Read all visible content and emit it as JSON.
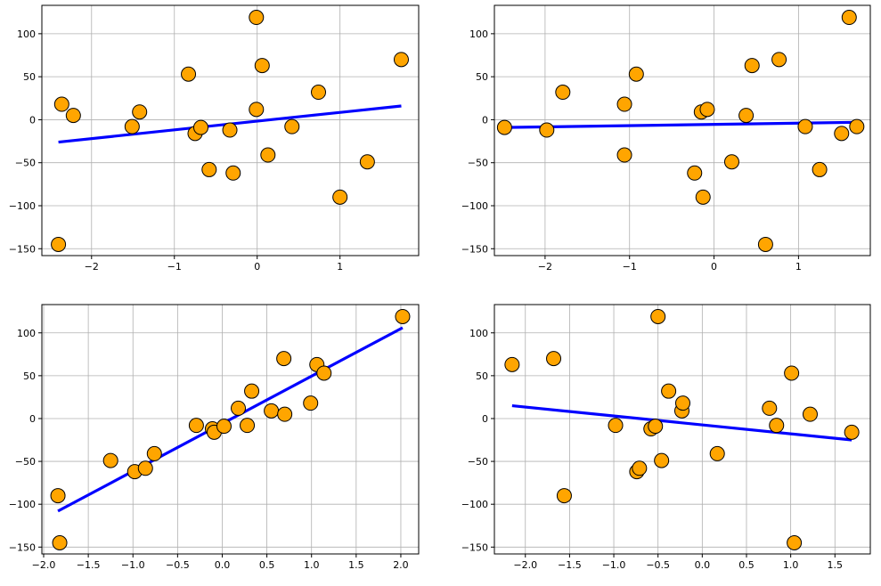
{
  "chart_data": [
    {
      "type": "scatter",
      "grid": true,
      "xlim": [
        -2.6,
        1.95
      ],
      "ylim": [
        -158,
        133
      ],
      "xticks": [
        -2,
        -1,
        0,
        1
      ],
      "xtick_labels": [
        "−2",
        "−1",
        "0",
        "1"
      ],
      "yticks": [
        -150,
        -100,
        -50,
        0,
        50,
        100
      ],
      "ytick_labels": [
        "−150",
        "−100",
        "−50",
        "0",
        "50",
        "100"
      ],
      "points": [
        [
          -2.4,
          -145
        ],
        [
          -2.36,
          18
        ],
        [
          -2.22,
          5
        ],
        [
          -1.51,
          -8
        ],
        [
          -1.42,
          9
        ],
        [
          -0.83,
          53
        ],
        [
          -0.75,
          -16
        ],
        [
          -0.68,
          -9
        ],
        [
          -0.58,
          -58
        ],
        [
          -0.33,
          -12
        ],
        [
          -0.29,
          -62
        ],
        [
          -0.01,
          119
        ],
        [
          -0.01,
          12
        ],
        [
          0.06,
          63
        ],
        [
          0.13,
          -41
        ],
        [
          0.42,
          -8
        ],
        [
          0.74,
          32
        ],
        [
          1.0,
          -90
        ],
        [
          1.33,
          -49
        ],
        [
          1.74,
          70
        ]
      ],
      "fit_line": [
        [
          -2.4,
          -26
        ],
        [
          1.74,
          16
        ]
      ],
      "point_color": "#ffa500",
      "line_color": "#0000ff"
    },
    {
      "type": "scatter",
      "grid": true,
      "xlim": [
        -2.6,
        1.85
      ],
      "ylim": [
        -158,
        133
      ],
      "xticks": [
        -2,
        -1,
        0,
        1
      ],
      "xtick_labels": [
        "−2",
        "−1",
        "0",
        "1"
      ],
      "yticks": [
        -150,
        -100,
        -50,
        0,
        50,
        100
      ],
      "ytick_labels": [
        "−150",
        "−100",
        "−50",
        "0",
        "50",
        "100"
      ],
      "points": [
        [
          -2.48,
          -9
        ],
        [
          -1.98,
          -12
        ],
        [
          -1.79,
          32
        ],
        [
          -1.06,
          18
        ],
        [
          -1.06,
          -41
        ],
        [
          -0.92,
          53
        ],
        [
          -0.23,
          -62
        ],
        [
          -0.15,
          9
        ],
        [
          -0.13,
          -90
        ],
        [
          -0.08,
          12
        ],
        [
          0.21,
          -49
        ],
        [
          0.38,
          5
        ],
        [
          0.45,
          63
        ],
        [
          0.61,
          -145
        ],
        [
          0.77,
          70
        ],
        [
          1.08,
          -8
        ],
        [
          1.25,
          -58
        ],
        [
          1.51,
          -16
        ],
        [
          1.6,
          119
        ],
        [
          1.69,
          -8
        ]
      ],
      "fit_line": [
        [
          -2.48,
          -9
        ],
        [
          1.69,
          -3
        ]
      ],
      "point_color": "#ffa500",
      "line_color": "#0000ff"
    },
    {
      "type": "scatter",
      "grid": true,
      "xlim": [
        -2.02,
        2.2
      ],
      "ylim": [
        -158,
        133
      ],
      "xticks": [
        -2.0,
        -1.5,
        -1.0,
        -0.5,
        0.0,
        0.5,
        1.0,
        1.5,
        2.0
      ],
      "xtick_labels": [
        "−2.0",
        "−1.5",
        "−1.0",
        "−0.5",
        "0.0",
        "0.5",
        "1.0",
        "1.5",
        "2.0"
      ],
      "yticks": [
        -150,
        -100,
        -50,
        0,
        50,
        100
      ],
      "ytick_labels": [
        "−150",
        "−100",
        "−50",
        "0",
        "50",
        "100"
      ],
      "points": [
        [
          -1.84,
          -90
        ],
        [
          -1.82,
          -145
        ],
        [
          -1.25,
          -49
        ],
        [
          -0.98,
          -62
        ],
        [
          -0.86,
          -58
        ],
        [
          -0.76,
          -41
        ],
        [
          -0.29,
          -8
        ],
        [
          -0.11,
          -12
        ],
        [
          -0.09,
          -16
        ],
        [
          0.02,
          -9
        ],
        [
          0.18,
          12
        ],
        [
          0.28,
          -8
        ],
        [
          0.33,
          32
        ],
        [
          0.55,
          9
        ],
        [
          0.69,
          70
        ],
        [
          0.7,
          5
        ],
        [
          0.99,
          18
        ],
        [
          1.06,
          63
        ],
        [
          1.14,
          53
        ],
        [
          2.02,
          119
        ]
      ],
      "fit_line": [
        [
          -1.84,
          -108
        ],
        [
          2.02,
          106
        ]
      ],
      "point_color": "#ffa500",
      "line_color": "#0000ff"
    },
    {
      "type": "scatter",
      "grid": true,
      "xlim": [
        -2.35,
        1.9
      ],
      "ylim": [
        -158,
        133
      ],
      "xticks": [
        -2.0,
        -1.5,
        -1.0,
        -0.5,
        0.0,
        0.5,
        1.0,
        1.5
      ],
      "xtick_labels": [
        "−2.0",
        "−1.5",
        "−1.0",
        "−0.5",
        "0.0",
        "0.5",
        "1.0",
        "1.5"
      ],
      "yticks": [
        -150,
        -100,
        -50,
        0,
        50,
        100
      ],
      "ytick_labels": [
        "−150",
        "−100",
        "−50",
        "0",
        "50",
        "100"
      ],
      "points": [
        [
          -2.15,
          63
        ],
        [
          -1.68,
          70
        ],
        [
          -1.56,
          -90
        ],
        [
          -0.98,
          -8
        ],
        [
          -0.74,
          -62
        ],
        [
          -0.71,
          -58
        ],
        [
          -0.58,
          -12
        ],
        [
          -0.53,
          -9
        ],
        [
          -0.5,
          119
        ],
        [
          -0.46,
          -49
        ],
        [
          -0.38,
          32
        ],
        [
          -0.23,
          9
        ],
        [
          -0.22,
          18
        ],
        [
          0.17,
          -41
        ],
        [
          0.76,
          12
        ],
        [
          0.84,
          -8
        ],
        [
          1.01,
          53
        ],
        [
          1.04,
          -145
        ],
        [
          1.22,
          5
        ],
        [
          1.69,
          -16
        ]
      ],
      "fit_line": [
        [
          -2.15,
          15
        ],
        [
          1.69,
          -25
        ]
      ],
      "point_color": "#ffa500",
      "line_color": "#0000ff"
    }
  ]
}
